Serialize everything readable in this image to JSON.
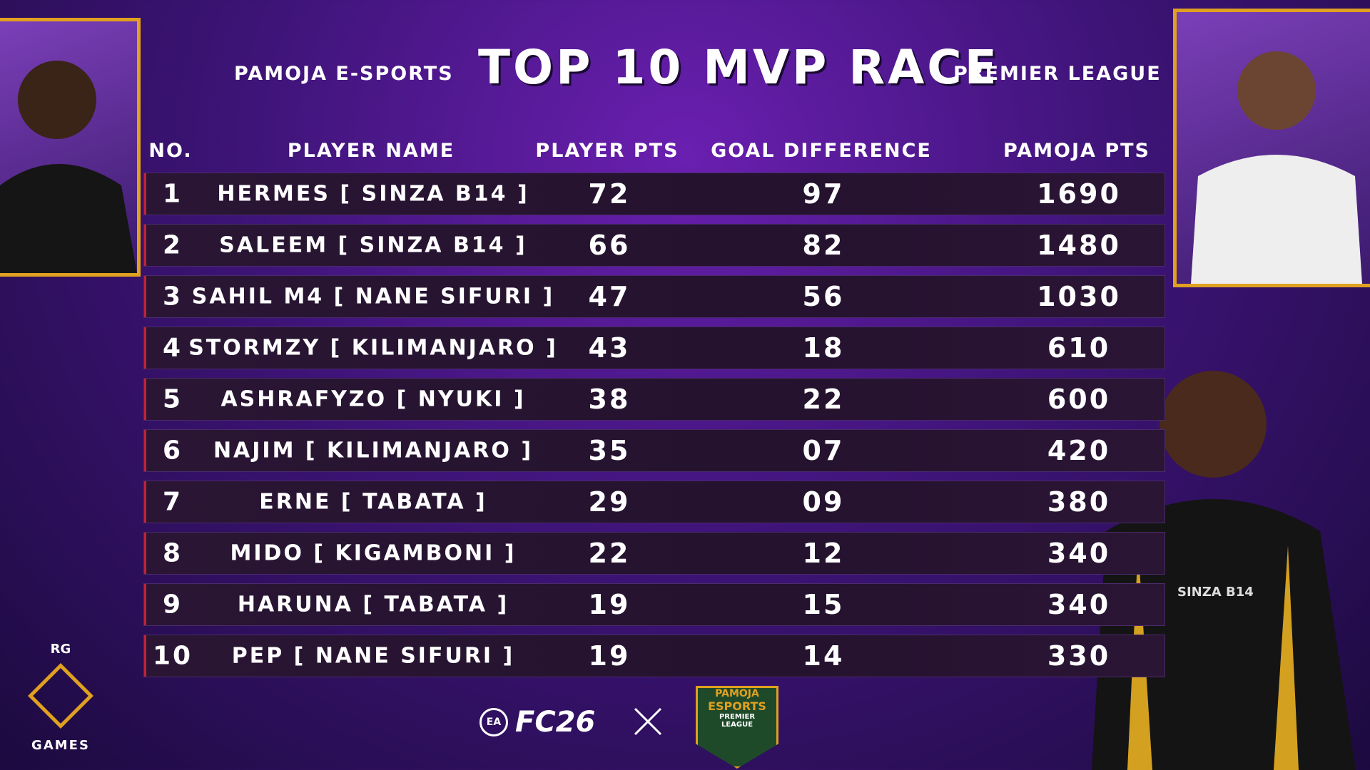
{
  "header": {
    "left": "PAMOJA E-SPORTS",
    "title": "TOP 10 MVP RACE",
    "right": "PREMIER LEAGUE"
  },
  "table": {
    "headers": [
      "NO.",
      "PLAYER NAME",
      "PLAYER PTS",
      "GOAL DIFFERENCE",
      "PAMOJA PTS"
    ],
    "rows": [
      [
        "1",
        "HERMES [ SINZA B14 ]",
        "72",
        "97",
        "1690"
      ],
      [
        "2",
        "SALEEM [ SINZA B14 ]",
        "66",
        "82",
        "1480"
      ],
      [
        "3",
        "SAHIL M4 [ NANE SIFURI ]",
        "47",
        "56",
        "1030"
      ],
      [
        "4",
        "STORMZY [ KILIMANJARO ]",
        "43",
        "18",
        "610"
      ],
      [
        "5",
        "ASHRAFYZO [ NYUKI ]",
        "38",
        "22",
        "600"
      ],
      [
        "6",
        "NAJIM [ KILIMANJARO ]",
        "35",
        "07",
        "420"
      ],
      [
        "7",
        "ERNE [ TABATA ]",
        "29",
        "09",
        "380"
      ],
      [
        "8",
        "MIDO [ KIGAMBONI ]",
        "22",
        "12",
        "340"
      ],
      [
        "9",
        "HARUNA [ TABATA ]",
        "19",
        "15",
        "340"
      ],
      [
        "10",
        "PEP [ NANE SIFURI ]",
        "19",
        "14",
        "330"
      ]
    ]
  },
  "logos": {
    "rg_top": "RG",
    "rg_bottom": "GAMES",
    "ea": "EA",
    "fc": "FC26",
    "pamoja": "PAMOJA",
    "esports": "ESPORTS",
    "premier": "PREMIER",
    "league": "LEAGUE",
    "shirt": "SINZA B14"
  }
}
